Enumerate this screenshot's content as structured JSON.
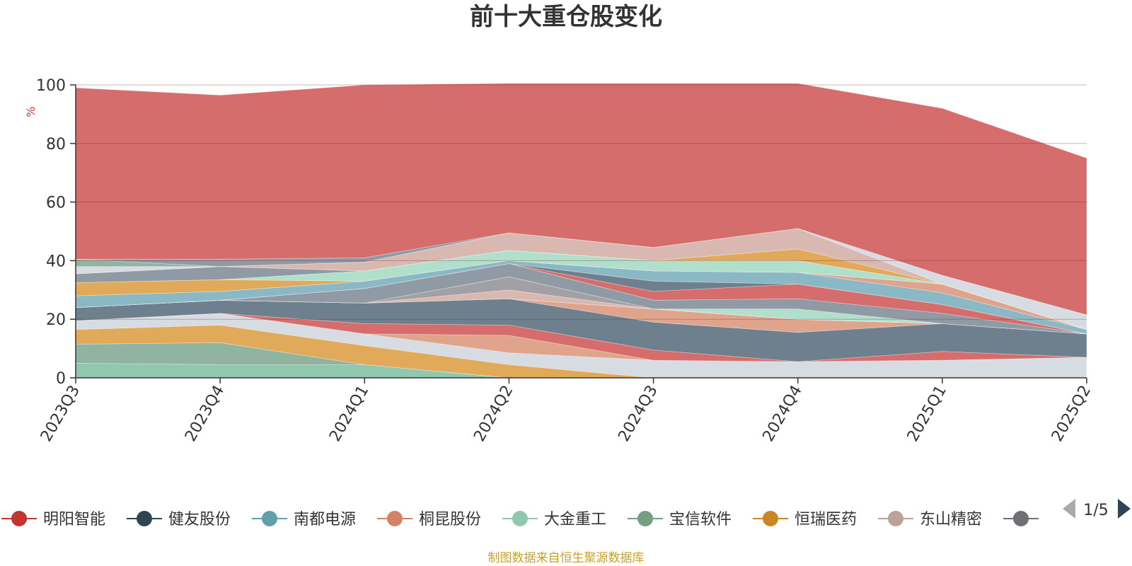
{
  "chart_data": {
    "type": "area",
    "stacked": true,
    "title": "前十大重仓股变化",
    "ylabel": "%",
    "ylim": [
      0,
      100
    ],
    "yticks": [
      "0",
      "20",
      "40",
      "60",
      "80",
      "100"
    ],
    "categories": [
      "2023Q3",
      "2023Q4",
      "2024Q1",
      "2024Q2",
      "2024Q3",
      "2024Q4",
      "2025Q1",
      "2025Q2"
    ],
    "series": [
      {
        "name": "",
        "color": "#91c7ae",
        "values": [
          5,
          4.5,
          4.5,
          0,
          0,
          0,
          0,
          0
        ]
      },
      {
        "name": "",
        "color": "#90b4a0",
        "values": [
          6.5,
          7.5,
          0,
          0,
          0,
          0,
          0,
          0
        ]
      },
      {
        "name": "",
        "color": "#e0aa5a",
        "values": [
          5,
          6,
          6.5,
          4.5,
          0,
          0,
          0,
          0
        ]
      },
      {
        "name": "",
        "color": "#d7dbe2",
        "values": [
          3,
          4,
          4,
          4,
          6,
          5.5,
          6,
          7
        ]
      },
      {
        "name": "",
        "color": "#e0a48c",
        "values": [
          0,
          0,
          0,
          6,
          0,
          0,
          0,
          0
        ]
      },
      {
        "name": "",
        "color": "#d46d6c",
        "values": [
          0,
          0,
          3.5,
          3.5,
          3.5,
          0,
          3,
          0
        ]
      },
      {
        "name": "",
        "color": "#6e7f8d",
        "values": [
          4.5,
          4.5,
          7,
          9,
          9.5,
          10,
          9.5,
          8
        ]
      },
      {
        "name": "",
        "color": "#e0a48c",
        "values": [
          0,
          0,
          0,
          0,
          4.5,
          4.5,
          0,
          0
        ]
      },
      {
        "name": "",
        "color": "#d46d6c",
        "values": [
          0,
          0,
          0,
          0,
          0,
          0,
          0,
          0
        ]
      },
      {
        "name": "",
        "color": "#d8b8b0",
        "values": [
          0,
          0,
          0,
          3,
          0,
          0,
          0,
          0
        ]
      },
      {
        "name": "",
        "color": "#a0a0a5",
        "values": [
          0,
          0,
          0,
          4.5,
          0,
          0,
          0,
          0
        ]
      },
      {
        "name": "",
        "color": "#b0e0cc",
        "values": [
          0,
          0,
          0,
          0,
          0,
          3.5,
          0,
          0
        ]
      },
      {
        "name": "",
        "color": "#909aa5",
        "values": [
          0,
          0,
          5,
          4.5,
          3,
          3.5,
          3.5,
          0
        ]
      },
      {
        "name": "",
        "color": "#d46d6c",
        "values": [
          0,
          0,
          0,
          0,
          3,
          5,
          3,
          0
        ]
      },
      {
        "name": "",
        "color": "#6e7f8d",
        "values": [
          0,
          0,
          0,
          0,
          3.5,
          0,
          0,
          0
        ]
      },
      {
        "name": "",
        "color": "#8ab8c4",
        "values": [
          4,
          3,
          2.5,
          1,
          3.5,
          4,
          4,
          1.5
        ]
      },
      {
        "name": "",
        "color": "#e0a48c",
        "values": [
          0,
          0,
          0,
          0,
          0,
          0,
          3,
          0
        ]
      },
      {
        "name": "",
        "color": "#e0aa5a",
        "values": [
          4.5,
          4,
          0,
          0,
          0,
          0,
          0,
          0
        ]
      },
      {
        "name": "",
        "color": "#b0e0cc",
        "values": [
          0,
          0,
          3.5,
          3.5,
          3.5,
          4,
          0,
          0
        ]
      },
      {
        "name": "",
        "color": "#909aa5",
        "values": [
          3,
          4.5,
          0,
          0,
          0,
          0,
          0,
          0
        ]
      },
      {
        "name": "",
        "color": "#e0aa5a",
        "values": [
          0,
          0,
          0,
          0,
          0,
          4,
          0,
          0
        ]
      },
      {
        "name": "",
        "color": "#d8b8b0",
        "values": [
          0,
          0,
          3,
          6,
          4.5,
          7,
          0,
          0
        ]
      },
      {
        "name": "",
        "color": "#d7dbe2",
        "values": [
          2.5,
          0,
          0,
          0,
          0,
          0,
          3,
          5
        ]
      },
      {
        "name": "",
        "color": "#90b4a0",
        "values": [
          2.5,
          0,
          0,
          0,
          0,
          0,
          0,
          0
        ]
      },
      {
        "name": "",
        "color": "#909aa5",
        "values": [
          0,
          2.5,
          1.5,
          0,
          0,
          0,
          0,
          0
        ]
      },
      {
        "name": "",
        "color": "#d46d6c",
        "values": [
          58.5,
          56,
          59,
          51,
          56,
          49.5,
          57,
          53.5
        ]
      }
    ],
    "legend": [
      {
        "name": "明阳智能",
        "color": "#c23531"
      },
      {
        "name": "健友股份",
        "color": "#2f4554"
      },
      {
        "name": "南都电源",
        "color": "#61a0a8"
      },
      {
        "name": "桐昆股份",
        "color": "#d48265"
      },
      {
        "name": "大金重工",
        "color": "#91c7ae"
      },
      {
        "name": "宝信软件",
        "color": "#749f83"
      },
      {
        "name": "恒瑞医药",
        "color": "#ca8622"
      },
      {
        "name": "东山精密",
        "color": "#bda29a"
      },
      {
        "name": "",
        "color": "#6e7074"
      }
    ],
    "legend_placement": "bottom",
    "legend_page": "1/5",
    "grid": true
  },
  "footer": {
    "source": "制图数据来自恒生聚源数据库"
  }
}
